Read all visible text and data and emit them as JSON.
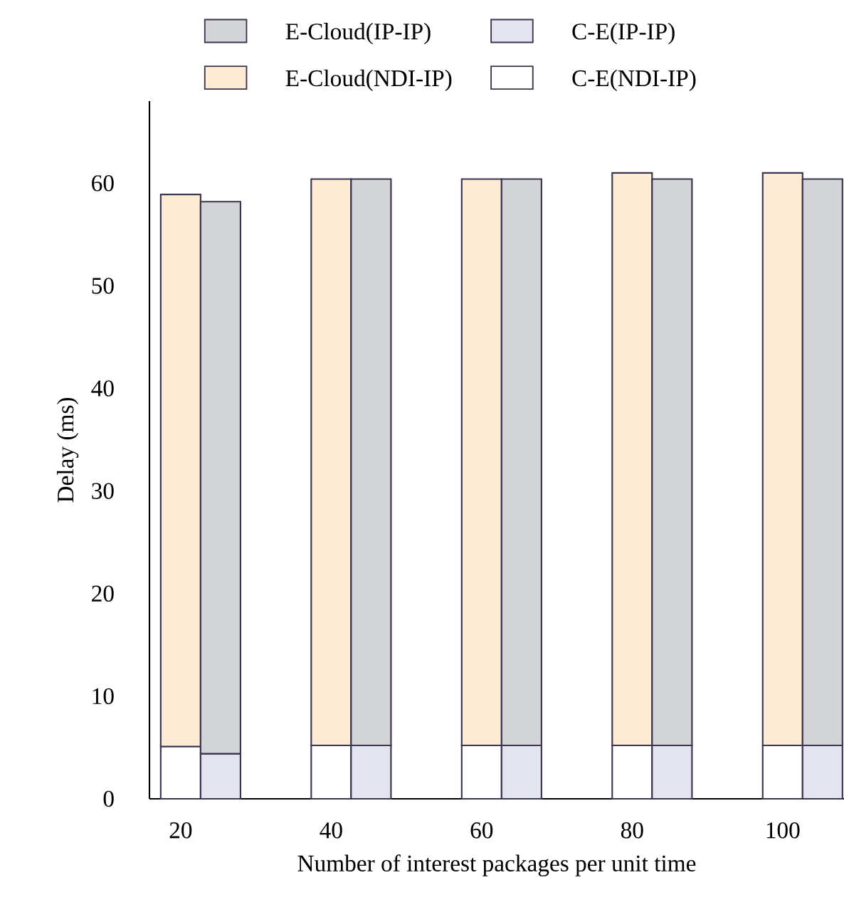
{
  "chart_data": {
    "type": "bar",
    "stacked": true,
    "xlabel": "Number of interest packages per unit time",
    "ylabel": "Delay (ms)",
    "categories": [
      "20",
      null,
      "40",
      null,
      "60",
      null,
      "80",
      null,
      "100",
      null
    ],
    "series": [
      {
        "name": "C-E(NDI-IP)",
        "color": "#ffffff",
        "values": [
          5.1,
          null,
          5.2,
          null,
          5.2,
          null,
          5.2,
          null,
          5.2,
          null
        ]
      },
      {
        "name": "E-Cloud(NDI-IP)",
        "color": "#fdebd3",
        "values": [
          53.8,
          null,
          55.2,
          null,
          55.2,
          null,
          55.8,
          null,
          55.8,
          null
        ]
      },
      {
        "name": "C-E(IP-IP)",
        "color": "#e3e4f0",
        "values": [
          null,
          4.4,
          null,
          5.2,
          null,
          5.2,
          null,
          5.2,
          null,
          5.2
        ]
      },
      {
        "name": "E-Cloud(IP-IP)",
        "color": "#d3d4d8",
        "values": [
          null,
          53.8,
          null,
          55.2,
          null,
          55.2,
          null,
          55.2,
          null,
          55.2
        ]
      }
    ],
    "ylim": [
      0,
      68
    ],
    "yticks": [
      0,
      10,
      20,
      30,
      40,
      50,
      60
    ],
    "legend": "top",
    "grid": false
  }
}
